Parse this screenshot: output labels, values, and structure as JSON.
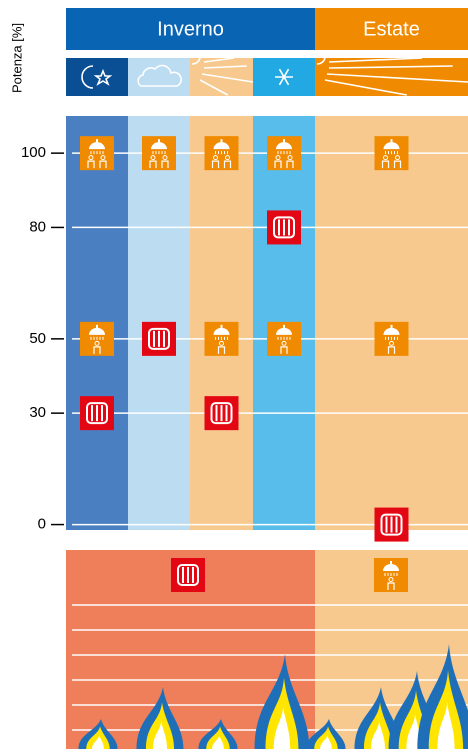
{
  "chart_data": {
    "type": "icon-matrix",
    "y_label": "Potenza [%]",
    "groups": [
      {
        "label": "Inverno",
        "color": "#0a64b4",
        "span": 4
      },
      {
        "label": "Estate",
        "color": "#f08a00",
        "span": 1
      }
    ],
    "header_colors": [
      "#0a4e94",
      "#bcdcf2",
      "#f7c98e",
      "#22a8e2",
      "#f08a00"
    ],
    "column_colors": [
      "#4a7fc1",
      "#bcdcf2",
      "#f7c98e",
      "#59bdeb",
      "#f7c98e"
    ],
    "ylim": [
      -2,
      110
    ],
    "yticks": [
      0,
      30,
      50,
      80,
      100
    ],
    "grid": true,
    "series": [
      {
        "marker": "shower-two",
        "color": "#f08a00",
        "values": [
          100,
          100,
          100,
          100,
          100
        ]
      },
      {
        "marker": "radiator",
        "color": "#e30613",
        "values": [
          30,
          50,
          30,
          80,
          0
        ]
      },
      {
        "marker": "shower-one",
        "color": "#f08a00",
        "values": [
          50,
          null,
          50,
          50,
          50
        ]
      }
    ]
  }
}
